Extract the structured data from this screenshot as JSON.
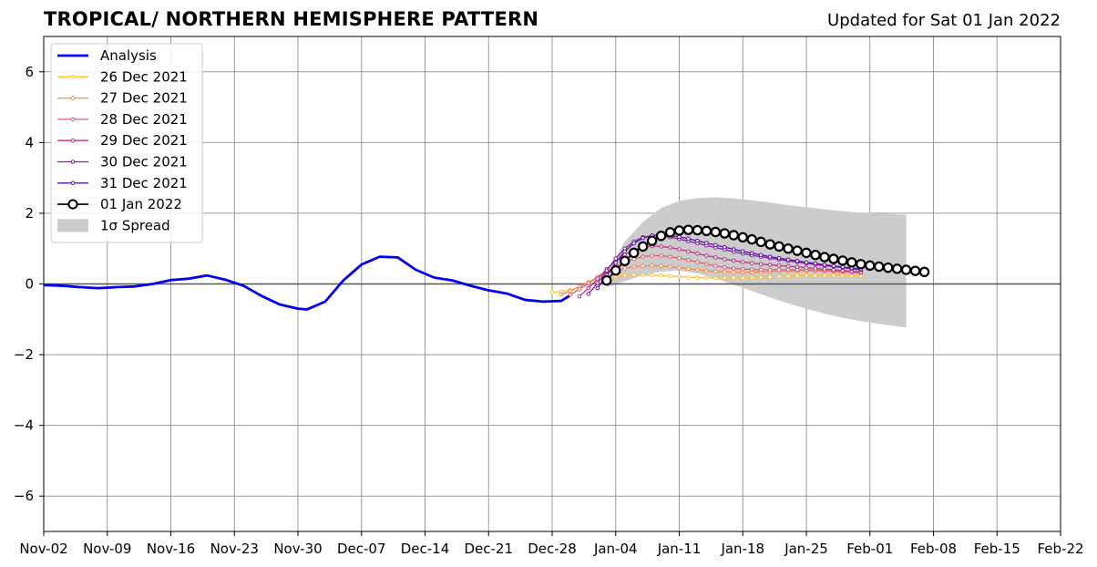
{
  "header": {
    "title": "TROPICAL/ NORTHERN HEMISPHERE PATTERN",
    "updated": "Updated for Sat 01 Jan 2022"
  },
  "colors": {
    "analysis": "#0000ee",
    "spread": "#cccccc",
    "grid": "#999999",
    "f_2021-12-26": "#ffc03a",
    "f_2021-12-27": "#f58a4b",
    "f_2021-12-28": "#de5f74",
    "f_2021-12-29": "#b83289",
    "f_2021-12-30": "#8e1aa6",
    "f_2021-12-31": "#5c10a3",
    "f_2022-01-01": "#000000"
  },
  "chart_data": {
    "type": "line",
    "ylim": [
      -7,
      7
    ],
    "xlim": [
      "2021-11-02",
      "2022-02-22"
    ],
    "y_ticks": [
      -6,
      -4,
      -2,
      0,
      2,
      4,
      6
    ],
    "y_tick_labels": [
      "−6",
      "−4",
      "−2",
      "0",
      "2",
      "4",
      "6"
    ],
    "x_ticks": [
      "2021-11-02",
      "2021-11-09",
      "2021-11-16",
      "2021-11-23",
      "2021-11-30",
      "2021-12-07",
      "2021-12-14",
      "2021-12-21",
      "2021-12-28",
      "2022-01-04",
      "2022-01-11",
      "2022-01-18",
      "2022-01-25",
      "2022-02-01",
      "2022-02-08",
      "2022-02-15",
      "2022-02-22"
    ],
    "x_tick_labels": [
      "Nov-02",
      "Nov-09",
      "Nov-16",
      "Nov-23",
      "Nov-30",
      "Dec-07",
      "Dec-14",
      "Dec-21",
      "Dec-28",
      "Jan-04",
      "Jan-11",
      "Jan-18",
      "Jan-25",
      "Feb-01",
      "Feb-08",
      "Feb-15",
      "Feb-22"
    ],
    "grid": true,
    "legend": {
      "position": "upper-left",
      "entries": [
        "Analysis",
        "26 Dec 2021",
        "27 Dec 2021",
        "28 Dec 2021",
        "29 Dec 2021",
        "30 Dec 2021",
        "31 Dec 2021",
        "01 Jan 2022",
        "1σ Spread"
      ]
    },
    "analysis": {
      "name": "Analysis",
      "x": [
        "2021-11-02",
        "2021-11-04",
        "2021-11-06",
        "2021-11-08",
        "2021-11-10",
        "2021-11-12",
        "2021-11-14",
        "2021-11-16",
        "2021-11-18",
        "2021-11-20",
        "2021-11-22",
        "2021-11-24",
        "2021-11-26",
        "2021-11-28",
        "2021-11-30",
        "2021-12-01",
        "2021-12-03",
        "2021-12-05",
        "2021-12-07",
        "2021-12-09",
        "2021-12-11",
        "2021-12-13",
        "2021-12-15",
        "2021-12-17",
        "2021-12-19",
        "2021-12-21",
        "2021-12-23",
        "2021-12-25",
        "2021-12-27",
        "2021-12-29",
        "2021-12-30"
      ],
      "y": [
        -0.03,
        -0.05,
        -0.09,
        -0.12,
        -0.09,
        -0.07,
        0.0,
        0.11,
        0.15,
        0.24,
        0.12,
        -0.05,
        -0.34,
        -0.58,
        -0.7,
        -0.72,
        -0.5,
        0.1,
        0.55,
        0.77,
        0.75,
        0.4,
        0.18,
        0.1,
        -0.05,
        -0.18,
        -0.27,
        -0.45,
        -0.5,
        -0.48,
        -0.32
      ]
    },
    "series": [
      {
        "name": "26 Dec 2021",
        "key": "f_2021-12-26",
        "start": "2021-12-28",
        "y": [
          -0.23,
          -0.22,
          -0.17,
          -0.1,
          -0.01,
          0.08,
          0.16,
          0.21,
          0.24,
          0.26,
          0.26,
          0.25,
          0.24,
          0.22,
          0.21,
          0.19,
          0.18,
          0.17,
          0.17,
          0.17,
          0.17,
          0.17,
          0.18,
          0.19,
          0.2,
          0.21,
          0.22,
          0.23,
          0.24,
          0.24,
          0.24,
          0.24,
          0.24,
          0.23,
          0.23
        ]
      },
      {
        "name": "27 Dec 2021",
        "key": "f_2021-12-27",
        "start": "2021-12-29",
        "y": [
          -0.3,
          -0.2,
          -0.08,
          0.05,
          0.18,
          0.3,
          0.38,
          0.44,
          0.49,
          0.51,
          0.52,
          0.51,
          0.49,
          0.46,
          0.43,
          0.4,
          0.37,
          0.35,
          0.34,
          0.33,
          0.33,
          0.33,
          0.34,
          0.35,
          0.36,
          0.37,
          0.37,
          0.37,
          0.37,
          0.36,
          0.35,
          0.34,
          0.33,
          0.32
        ]
      },
      {
        "name": "28 Dec 2021",
        "key": "f_2021-12-28",
        "start": "2021-12-30",
        "y": [
          -0.3,
          -0.15,
          0.02,
          0.2,
          0.36,
          0.5,
          0.62,
          0.71,
          0.77,
          0.8,
          0.8,
          0.77,
          0.73,
          0.68,
          0.62,
          0.56,
          0.51,
          0.47,
          0.44,
          0.42,
          0.41,
          0.4,
          0.4,
          0.4,
          0.4,
          0.4,
          0.4,
          0.39,
          0.38,
          0.37,
          0.35,
          0.33,
          0.31
        ]
      },
      {
        "name": "29 Dec 2021",
        "key": "f_2021-12-29",
        "start": "2021-12-31",
        "y": [
          -0.35,
          -0.12,
          0.15,
          0.42,
          0.65,
          0.83,
          0.96,
          1.04,
          1.07,
          1.06,
          1.03,
          0.98,
          0.92,
          0.86,
          0.8,
          0.75,
          0.7,
          0.66,
          0.62,
          0.59,
          0.56,
          0.54,
          0.52,
          0.5,
          0.48,
          0.46,
          0.44,
          0.42,
          0.4,
          0.38,
          0.36,
          0.34
        ]
      },
      {
        "name": "30 Dec 2021",
        "key": "f_2021-12-30",
        "start": "2022-01-01",
        "y": [
          -0.28,
          0.02,
          0.38,
          0.72,
          1.0,
          1.2,
          1.32,
          1.37,
          1.36,
          1.32,
          1.27,
          1.21,
          1.15,
          1.09,
          1.03,
          0.97,
          0.91,
          0.86,
          0.81,
          0.77,
          0.73,
          0.69,
          0.65,
          0.62,
          0.58,
          0.55,
          0.52,
          0.49,
          0.46,
          0.43,
          0.4
        ]
      },
      {
        "name": "31 Dec 2021",
        "key": "f_2021-12-31",
        "start": "2022-01-02",
        "y": [
          -0.12,
          0.25,
          0.6,
          0.92,
          1.15,
          1.3,
          1.37,
          1.39,
          1.37,
          1.33,
          1.28,
          1.22,
          1.16,
          1.1,
          1.04,
          0.98,
          0.92,
          0.87,
          0.82,
          0.77,
          0.73,
          0.69,
          0.65,
          0.61,
          0.58,
          0.54,
          0.51,
          0.48,
          0.45,
          0.42
        ]
      },
      {
        "name": "01 Jan 2022",
        "key": "f_2022-01-01",
        "start": "2022-01-03",
        "y": [
          0.1,
          0.38,
          0.65,
          0.88,
          1.06,
          1.22,
          1.36,
          1.46,
          1.51,
          1.53,
          1.52,
          1.5,
          1.47,
          1.43,
          1.38,
          1.32,
          1.26,
          1.19,
          1.12,
          1.06,
          1.0,
          0.94,
          0.88,
          0.82,
          0.76,
          0.71,
          0.66,
          0.61,
          0.56,
          0.52,
          0.49,
          0.46,
          0.43,
          0.4,
          0.37,
          0.34
        ]
      }
    ],
    "spread": {
      "name": "1σ Spread",
      "x": [
        "2022-01-03",
        "2022-01-05",
        "2022-01-07",
        "2022-01-09",
        "2022-01-11",
        "2022-01-13",
        "2022-01-15",
        "2022-01-17",
        "2022-01-19",
        "2022-01-21",
        "2022-01-23",
        "2022-01-25",
        "2022-01-27",
        "2022-01-29",
        "2022-01-31",
        "2022-02-02",
        "2022-02-04",
        "2022-02-05"
      ],
      "upper": [
        0.3,
        1.2,
        1.75,
        2.15,
        2.35,
        2.43,
        2.45,
        2.42,
        2.37,
        2.3,
        2.23,
        2.17,
        2.11,
        2.06,
        2.02,
        1.99,
        1.97,
        1.96
      ],
      "lower": [
        -0.1,
        0.08,
        0.25,
        0.35,
        0.38,
        0.3,
        0.15,
        -0.02,
        -0.2,
        -0.38,
        -0.55,
        -0.7,
        -0.84,
        -0.96,
        -1.05,
        -1.13,
        -1.2,
        -1.23
      ]
    }
  }
}
